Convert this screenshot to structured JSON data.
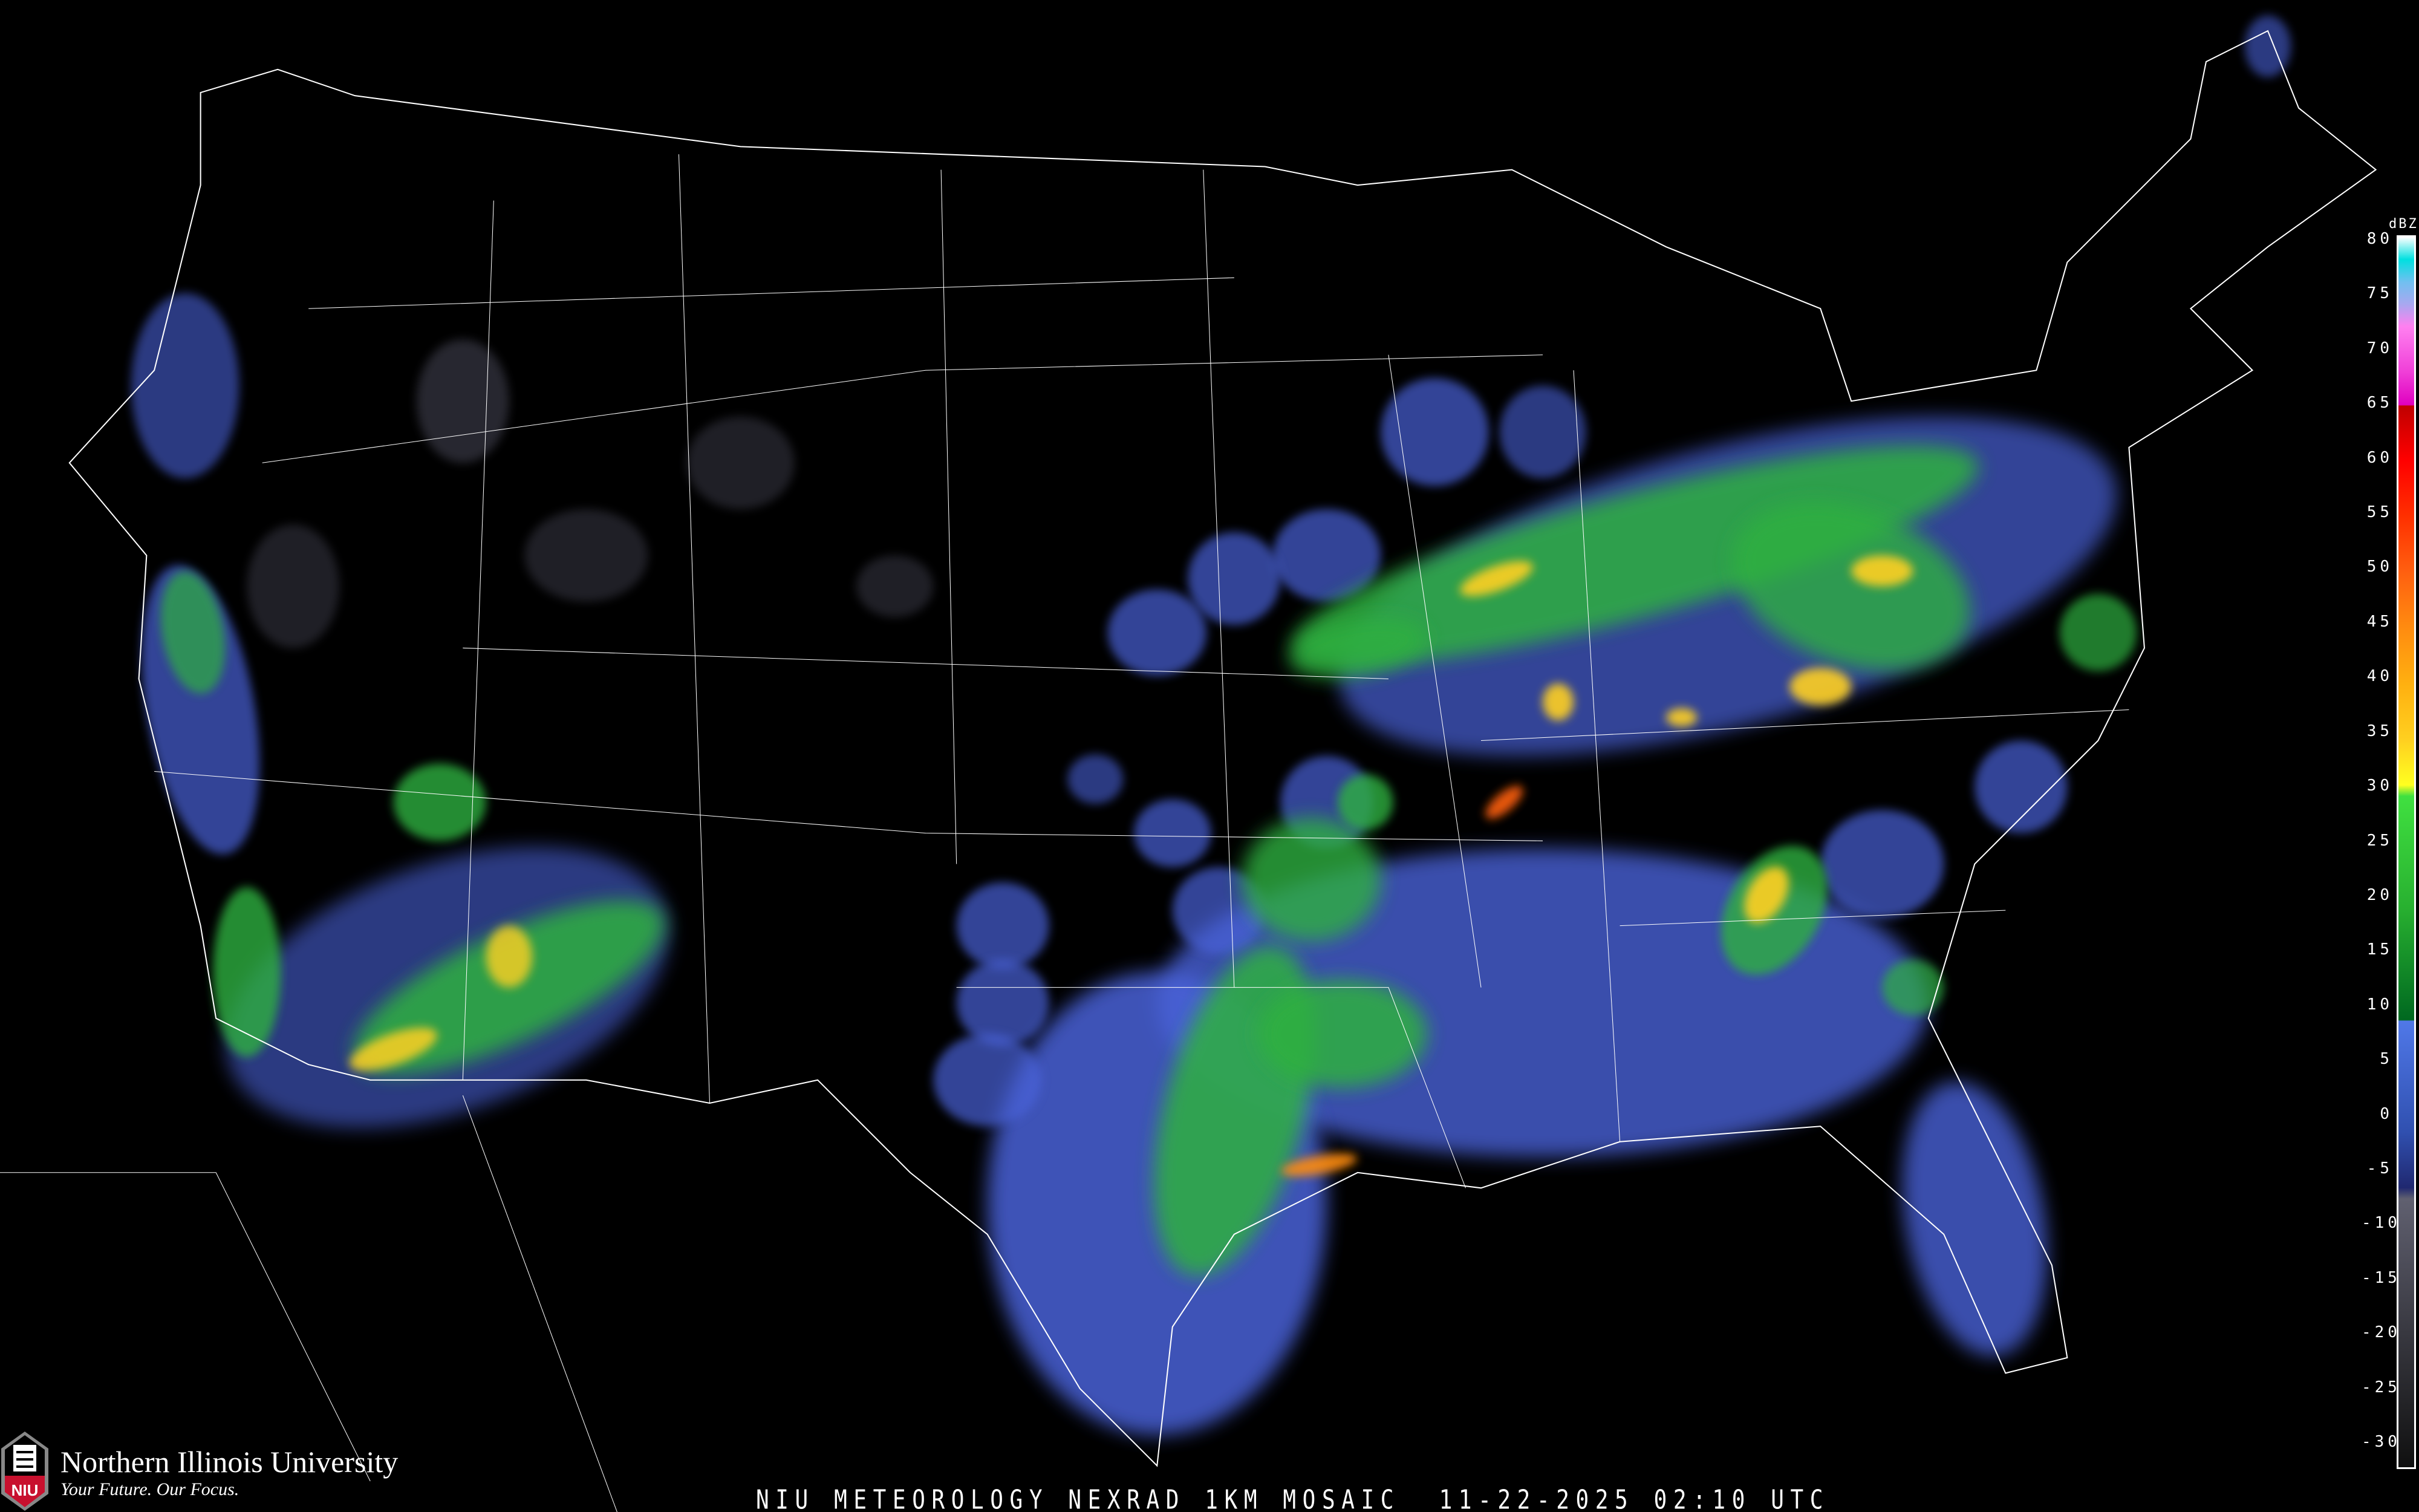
{
  "title": "NIU METEOROLOGY NEXRAD 1KM MOSAIC  11-22-2025 02:10 UTC",
  "branding": {
    "university": "Northern Illinois University",
    "tagline": "Your Future. Our Focus.",
    "logo_text": "NIU",
    "logo_color": "#c8102e"
  },
  "legend": {
    "unit": "dBZ",
    "ticks": [
      "80",
      "75",
      "70",
      "65",
      "60",
      "55",
      "50",
      "45",
      "40",
      "35",
      "30",
      "25",
      "20",
      "15",
      "10",
      "5",
      "0",
      "-5",
      "-10",
      "-15",
      "-20",
      "-25",
      "-30"
    ],
    "range": [
      -30,
      80
    ],
    "color_stops": [
      {
        "dbz": 80,
        "color": "#ffffff"
      },
      {
        "dbz": 78,
        "color": "#00e0e0"
      },
      {
        "dbz": 76,
        "color": "#70c0f0"
      },
      {
        "dbz": 74,
        "color": "#a8a8f0"
      },
      {
        "dbz": 72,
        "color": "#ff80f0"
      },
      {
        "dbz": 68,
        "color": "#f040d8"
      },
      {
        "dbz": 65,
        "color": "#e000c0"
      },
      {
        "dbz": 64.9,
        "color": "#c00000"
      },
      {
        "dbz": 60,
        "color": "#ff0000"
      },
      {
        "dbz": 55,
        "color": "#ff3000"
      },
      {
        "dbz": 50,
        "color": "#ff6010"
      },
      {
        "dbz": 45,
        "color": "#ff8c10"
      },
      {
        "dbz": 40,
        "color": "#ffb010"
      },
      {
        "dbz": 35,
        "color": "#ffd020"
      },
      {
        "dbz": 31,
        "color": "#ffff20"
      },
      {
        "dbz": 30,
        "color": "#40e040"
      },
      {
        "dbz": 20,
        "color": "#28b030"
      },
      {
        "dbz": 10,
        "color": "#006820"
      },
      {
        "dbz": 9.9,
        "color": "#5078e8"
      },
      {
        "dbz": 0,
        "color": "#3050b0"
      },
      {
        "dbz": -5,
        "color": "#202870"
      },
      {
        "dbz": -6,
        "color": "#606070"
      },
      {
        "dbz": -30,
        "color": "#101010"
      }
    ]
  },
  "colors": {
    "background": "#000000",
    "borders": "#ffffff",
    "roads": "#8a4a20"
  }
}
